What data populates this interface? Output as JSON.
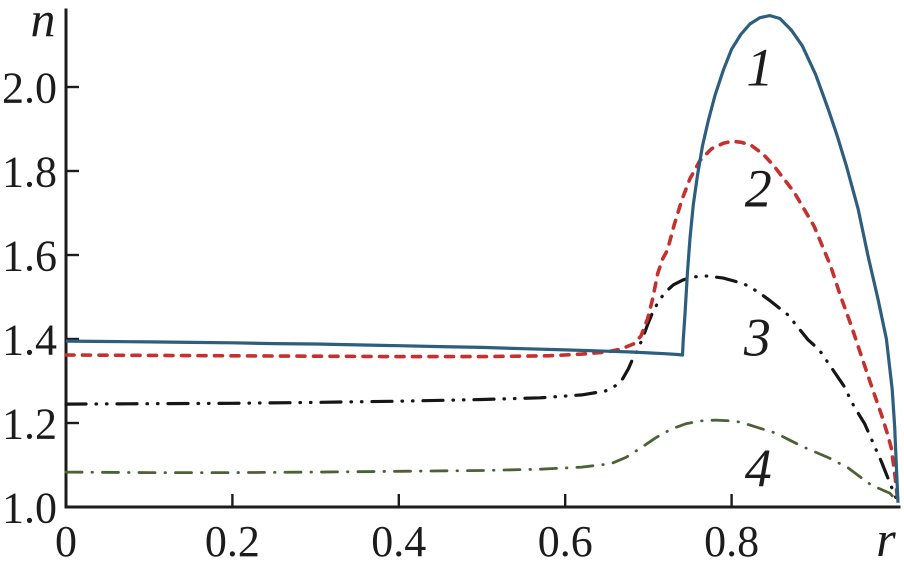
{
  "chart_data": {
    "type": "line",
    "title": "",
    "xlabel": "r",
    "ylabel": "n",
    "xlim": [
      0,
      1.0
    ],
    "ylim": [
      1.0,
      2.183
    ],
    "grid": false,
    "legend_position": "none",
    "background": "#ffffff",
    "axis_color": "#1c1c1c",
    "text_color": "#1c1c1c",
    "x_ticks": [
      {
        "value": 0,
        "label": "0"
      },
      {
        "value": 0.2,
        "label": "0.2"
      },
      {
        "value": 0.4,
        "label": "0.4"
      },
      {
        "value": 0.6,
        "label": "0.6"
      },
      {
        "value": 0.8,
        "label": "0.8"
      }
    ],
    "y_ticks": [
      {
        "value": 1.0,
        "label": "1.0"
      },
      {
        "value": 1.2,
        "label": "1.2"
      },
      {
        "value": 1.4,
        "label": "1.4"
      },
      {
        "value": 1.6,
        "label": "1.6"
      },
      {
        "value": 1.8,
        "label": "1.8"
      },
      {
        "value": 2.0,
        "label": "2.0"
      }
    ],
    "series": [
      {
        "name": "1",
        "style": "solid",
        "color": "#2e5e7d",
        "width": 3.2,
        "dash": "",
        "linecap": "butt",
        "points": [
          [
            0,
            1.395
          ],
          [
            0.05,
            1.394
          ],
          [
            0.1,
            1.393
          ],
          [
            0.15,
            1.392
          ],
          [
            0.2,
            1.391
          ],
          [
            0.25,
            1.389
          ],
          [
            0.3,
            1.388
          ],
          [
            0.35,
            1.386
          ],
          [
            0.4,
            1.384
          ],
          [
            0.45,
            1.382
          ],
          [
            0.5,
            1.38
          ],
          [
            0.55,
            1.377
          ],
          [
            0.6,
            1.374
          ],
          [
            0.65,
            1.371
          ],
          [
            0.68,
            1.369
          ],
          [
            0.7,
            1.367
          ],
          [
            0.72,
            1.365
          ],
          [
            0.735,
            1.363
          ],
          [
            0.741,
            1.362
          ],
          [
            0.742,
            1.4
          ],
          [
            0.744,
            1.46
          ],
          [
            0.747,
            1.56
          ],
          [
            0.75,
            1.64
          ],
          [
            0.754,
            1.72
          ],
          [
            0.759,
            1.79
          ],
          [
            0.765,
            1.86
          ],
          [
            0.772,
            1.92
          ],
          [
            0.78,
            1.98
          ],
          [
            0.79,
            2.04
          ],
          [
            0.8,
            2.09
          ],
          [
            0.811,
            2.125
          ],
          [
            0.822,
            2.15
          ],
          [
            0.834,
            2.165
          ],
          [
            0.846,
            2.17
          ],
          [
            0.858,
            2.163
          ],
          [
            0.872,
            2.135
          ],
          [
            0.885,
            2.098
          ],
          [
            0.901,
            2.03
          ],
          [
            0.916,
            1.948
          ],
          [
            0.927,
            1.883
          ],
          [
            0.938,
            1.812
          ],
          [
            0.952,
            1.71
          ],
          [
            0.964,
            1.598
          ],
          [
            0.976,
            1.495
          ],
          [
            0.986,
            1.4
          ],
          [
            0.993,
            1.28
          ],
          [
            0.996,
            1.19
          ],
          [
            0.998,
            1.1
          ],
          [
            1.0,
            1.01
          ]
        ]
      },
      {
        "name": "2",
        "style": "dashed",
        "color": "#c4312e",
        "width": 3.6,
        "dash": "8 8.5",
        "linecap": "round",
        "points": [
          [
            0,
            1.362
          ],
          [
            0.1,
            1.361
          ],
          [
            0.2,
            1.36
          ],
          [
            0.3,
            1.359
          ],
          [
            0.4,
            1.358
          ],
          [
            0.5,
            1.358
          ],
          [
            0.58,
            1.36
          ],
          [
            0.62,
            1.364
          ],
          [
            0.65,
            1.369
          ],
          [
            0.667,
            1.376
          ],
          [
            0.682,
            1.388
          ],
          [
            0.691,
            1.407
          ],
          [
            0.699,
            1.448
          ],
          [
            0.705,
            1.495
          ],
          [
            0.711,
            1.555
          ],
          [
            0.717,
            1.59
          ],
          [
            0.723,
            1.612
          ],
          [
            0.731,
            1.672
          ],
          [
            0.74,
            1.73
          ],
          [
            0.75,
            1.782
          ],
          [
            0.762,
            1.825
          ],
          [
            0.776,
            1.853
          ],
          [
            0.79,
            1.866
          ],
          [
            0.801,
            1.871
          ],
          [
            0.812,
            1.868
          ],
          [
            0.823,
            1.862
          ],
          [
            0.838,
            1.84
          ],
          [
            0.851,
            1.812
          ],
          [
            0.875,
            1.75
          ],
          [
            0.899,
            1.669
          ],
          [
            0.919,
            1.574
          ],
          [
            0.931,
            1.502
          ],
          [
            0.944,
            1.431
          ],
          [
            0.955,
            1.365
          ],
          [
            0.967,
            1.295
          ],
          [
            0.98,
            1.22
          ],
          [
            0.988,
            1.17
          ],
          [
            0.992,
            1.14
          ],
          [
            0.996,
            1.08
          ],
          [
            1.0,
            1.01
          ]
        ]
      },
      {
        "name": "3",
        "style": "dash-dot-dot",
        "color": "#161616",
        "width": 3.2,
        "dash": "20 10 0.5 10 0.5 10",
        "linecap": "round",
        "points": [
          [
            0,
            1.245
          ],
          [
            0.1,
            1.246
          ],
          [
            0.2,
            1.247
          ],
          [
            0.3,
            1.249
          ],
          [
            0.4,
            1.252
          ],
          [
            0.5,
            1.256
          ],
          [
            0.57,
            1.26
          ],
          [
            0.62,
            1.267
          ],
          [
            0.648,
            1.276
          ],
          [
            0.66,
            1.288
          ],
          [
            0.669,
            1.305
          ],
          [
            0.676,
            1.329
          ],
          [
            0.681,
            1.352
          ],
          [
            0.687,
            1.374
          ],
          [
            0.693,
            1.402
          ],
          [
            0.699,
            1.434
          ],
          [
            0.705,
            1.463
          ],
          [
            0.712,
            1.489
          ],
          [
            0.72,
            1.511
          ],
          [
            0.73,
            1.529
          ],
          [
            0.742,
            1.541
          ],
          [
            0.756,
            1.548
          ],
          [
            0.771,
            1.55
          ],
          [
            0.79,
            1.545
          ],
          [
            0.805,
            1.537
          ],
          [
            0.817,
            1.529
          ],
          [
            0.832,
            1.512
          ],
          [
            0.845,
            1.493
          ],
          [
            0.868,
            1.457
          ],
          [
            0.88,
            1.427
          ],
          [
            0.892,
            1.398
          ],
          [
            0.905,
            1.375
          ],
          [
            0.922,
            1.326
          ],
          [
            0.935,
            1.288
          ],
          [
            0.947,
            1.24
          ],
          [
            0.96,
            1.198
          ],
          [
            0.971,
            1.148
          ],
          [
            0.98,
            1.108
          ],
          [
            0.99,
            1.058
          ],
          [
            1.0,
            1.01
          ]
        ]
      },
      {
        "name": "4",
        "style": "dash-dot",
        "color": "#4d6137",
        "width": 2.8,
        "dash": "16 10 0.5 10",
        "linecap": "round",
        "points": [
          [
            0,
            1.083
          ],
          [
            0.1,
            1.082
          ],
          [
            0.2,
            1.082
          ],
          [
            0.3,
            1.083
          ],
          [
            0.4,
            1.085
          ],
          [
            0.5,
            1.087
          ],
          [
            0.57,
            1.09
          ],
          [
            0.62,
            1.095
          ],
          [
            0.655,
            1.103
          ],
          [
            0.673,
            1.118
          ],
          [
            0.691,
            1.141
          ],
          [
            0.709,
            1.165
          ],
          [
            0.727,
            1.185
          ],
          [
            0.745,
            1.198
          ],
          [
            0.763,
            1.205
          ],
          [
            0.781,
            1.207
          ],
          [
            0.8,
            1.205
          ],
          [
            0.811,
            1.202
          ],
          [
            0.83,
            1.19
          ],
          [
            0.853,
            1.176
          ],
          [
            0.886,
            1.143
          ],
          [
            0.917,
            1.117
          ],
          [
            0.94,
            1.093
          ],
          [
            0.968,
            1.052
          ],
          [
            0.99,
            1.033
          ],
          [
            1.0,
            1.012
          ]
        ]
      }
    ],
    "annotations": [
      {
        "text": "1",
        "r": 0.834,
        "n": 2.05
      },
      {
        "text": "2",
        "r": 0.832,
        "n": 1.762
      },
      {
        "text": "3",
        "r": 0.831,
        "n": 1.407
      },
      {
        "text": "4",
        "r": 0.832,
        "n": 1.096
      }
    ]
  }
}
